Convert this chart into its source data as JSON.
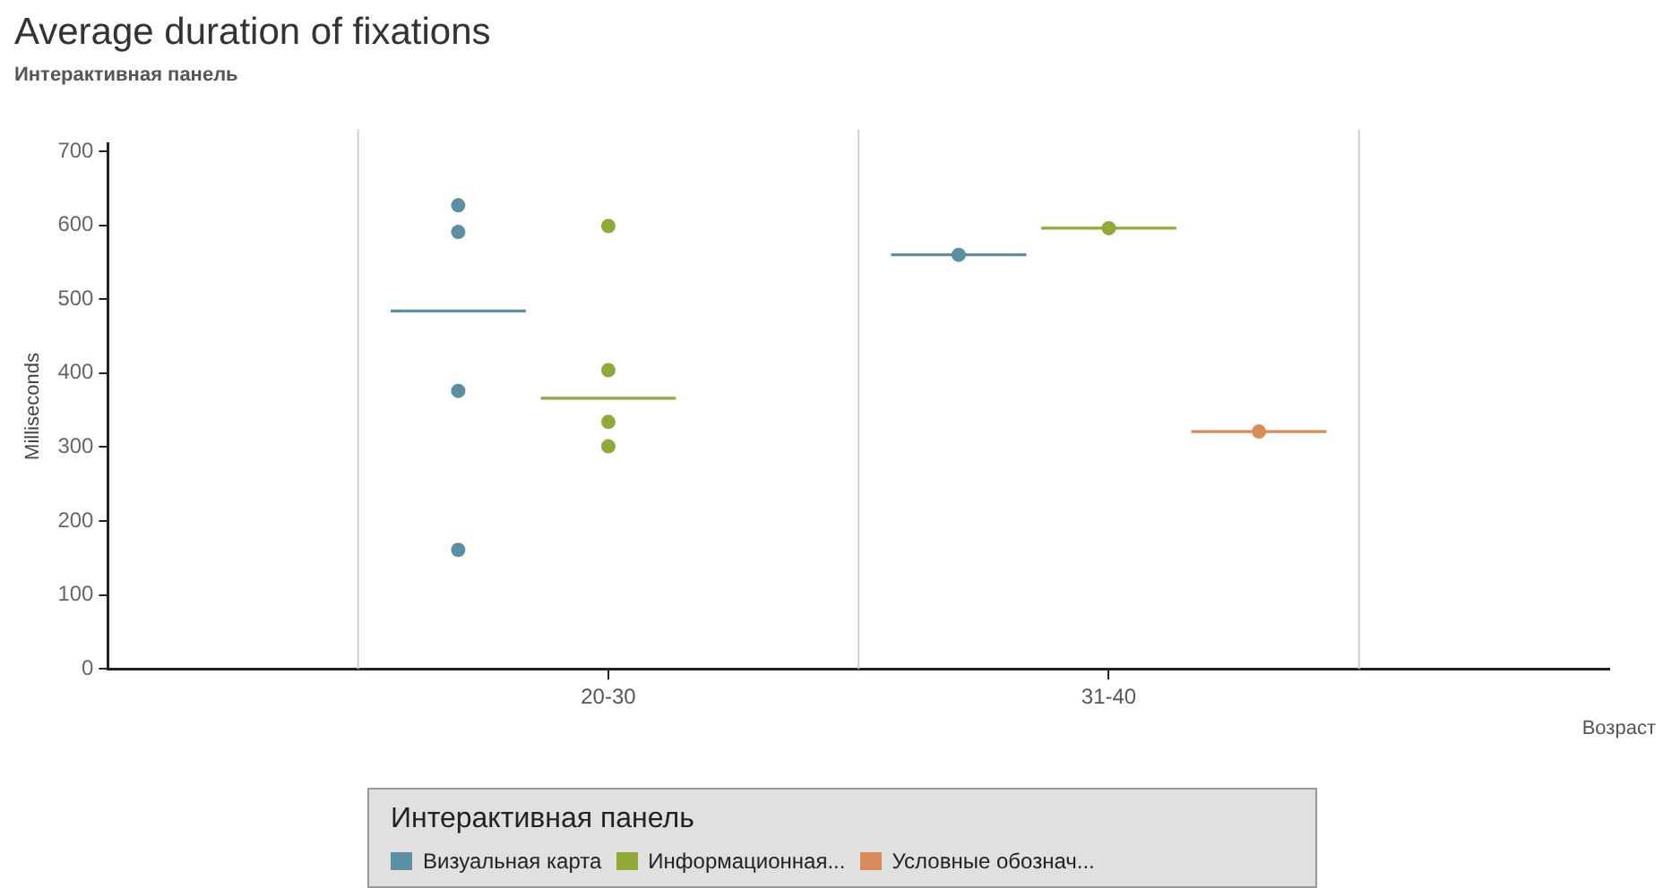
{
  "chart_data": {
    "type": "scatter",
    "title": "Average duration of fixations",
    "subtitle": "Интерактивная панель",
    "xlabel": "Возраст",
    "ylabel": "Milliseconds",
    "legend_title": "Интерактивная панель",
    "categories": [
      "20-30",
      "31-40"
    ],
    "series": [
      {
        "name": "Визуальная карта",
        "color": "#5b8fa3",
        "x": [
          "20-30",
          "20-30",
          "20-30",
          "20-30",
          "31-40"
        ],
        "values": [
          627,
          591,
          376,
          161,
          560
        ]
      },
      {
        "name": "Информационная...",
        "color": "#8faa35",
        "x": [
          "20-30",
          "20-30",
          "20-30",
          "20-30",
          "31-40"
        ],
        "values": [
          599,
          404,
          334,
          301,
          596
        ]
      },
      {
        "name": "Условные обознач...",
        "color": "#d98b5a",
        "x": [
          "31-40"
        ],
        "values": [
          321
        ]
      }
    ],
    "ref_lines": [
      {
        "axis": "y",
        "value": 484,
        "color": "#5b8fa3"
      },
      {
        "axis": "y",
        "value": 366,
        "color": "#8faa35"
      },
      {
        "axis": "y",
        "value": 560,
        "color": "#5b8fa3"
      },
      {
        "axis": "y",
        "value": 596,
        "color": "#8faa35"
      },
      {
        "axis": "y",
        "value": 321,
        "color": "#d98b5a"
      }
    ],
    "ylim": [
      0,
      710
    ],
    "yticks": [
      0,
      100,
      200,
      300,
      400,
      500,
      600,
      700
    ],
    "grid": "x",
    "legend": "bottom",
    "marker": "circle"
  }
}
